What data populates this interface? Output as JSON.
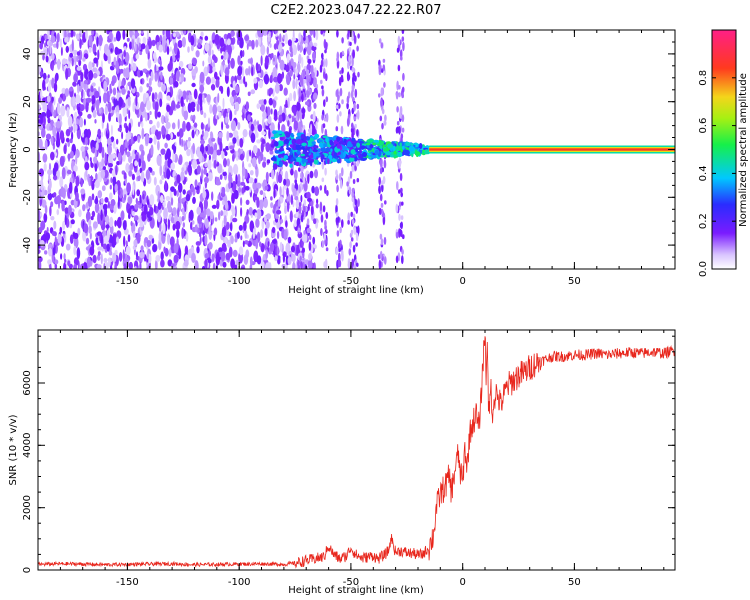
{
  "title": "C2E2.2023.047.22.22.R07",
  "chart_data": [
    {
      "type": "heatmap",
      "name": "spectrogram",
      "xlabel": "Height of straight line (km)",
      "ylabel": "Frequency (Hz)",
      "xlim": [
        -190,
        95
      ],
      "ylim": [
        -50,
        50
      ],
      "xticks": [
        -150,
        -100,
        -50,
        0,
        50
      ],
      "yticks": [
        -40,
        -20,
        0,
        20,
        40
      ],
      "grid": false,
      "colorbar": {
        "label": "Normalized spectral amplitude",
        "range": [
          0.0,
          1.0
        ],
        "ticks": [
          "0.0",
          "0.2",
          "0.4",
          "0.6",
          "0.8"
        ],
        "colormap": "rainbow (white to purple to blue to cyan to green to yellow to red to magenta)"
      },
      "features": {
        "noise_region_x": [
          -190,
          -75
        ],
        "transition_region_x": [
          -85,
          -15
        ],
        "carrier_line_x": [
          -15,
          95
        ],
        "carrier_frequency": 0,
        "carrier_amplitude": 0.85
      }
    },
    {
      "type": "line",
      "name": "snr",
      "xlabel": "Height of straight line (km)",
      "ylabel": "SNR (10 * v/v)",
      "xlim": [
        -190,
        95
      ],
      "ylim": [
        0,
        7700
      ],
      "xticks": [
        -150,
        -100,
        -50,
        0,
        50
      ],
      "yticks": [
        0,
        2000,
        4000,
        6000
      ],
      "grid": false,
      "color": "#e8261c",
      "series": [
        {
          "x": [
            -190,
            -180,
            -170,
            -160,
            -150,
            -140,
            -130,
            -120,
            -110,
            -100,
            -90,
            -80,
            -75,
            -70,
            -62,
            -60,
            -58,
            -55,
            -52,
            -50,
            -48,
            -45,
            -42,
            -40,
            -38,
            -35,
            -33,
            -32,
            -30,
            -28,
            -25,
            -22,
            -20,
            -18,
            -15,
            -13,
            -12,
            -10,
            -8,
            -6,
            -5,
            -3,
            -2,
            -1,
            0,
            1,
            2,
            3,
            4,
            5,
            6,
            7,
            8,
            9,
            10,
            10.5,
            11,
            11.5,
            12,
            12.5,
            13,
            14,
            15,
            17,
            20,
            23,
            25,
            28,
            30,
            33,
            35,
            37,
            40,
            45,
            50,
            55,
            60,
            65,
            70,
            75,
            80,
            85,
            90,
            95
          ],
          "y": [
            180,
            200,
            190,
            170,
            180,
            190,
            200,
            170,
            180,
            190,
            200,
            180,
            220,
            300,
            420,
            780,
            520,
            350,
            450,
            720,
            500,
            380,
            420,
            470,
            350,
            480,
            640,
            1050,
            560,
            620,
            550,
            530,
            480,
            500,
            720,
            1150,
            1900,
            2450,
            2650,
            3000,
            2500,
            3400,
            3700,
            3100,
            2800,
            3950,
            3250,
            4300,
            4600,
            4800,
            5050,
            4500,
            5200,
            6600,
            7650,
            6100,
            7700,
            4950,
            5200,
            6200,
            4900,
            5500,
            5700,
            5300,
            5900,
            6100,
            6250,
            6350,
            6500,
            6650,
            6700,
            6750,
            6850,
            6850,
            6900,
            6900,
            6950,
            6900,
            6950,
            6980,
            6950,
            7000,
            6950,
            7050
          ]
        }
      ]
    }
  ]
}
